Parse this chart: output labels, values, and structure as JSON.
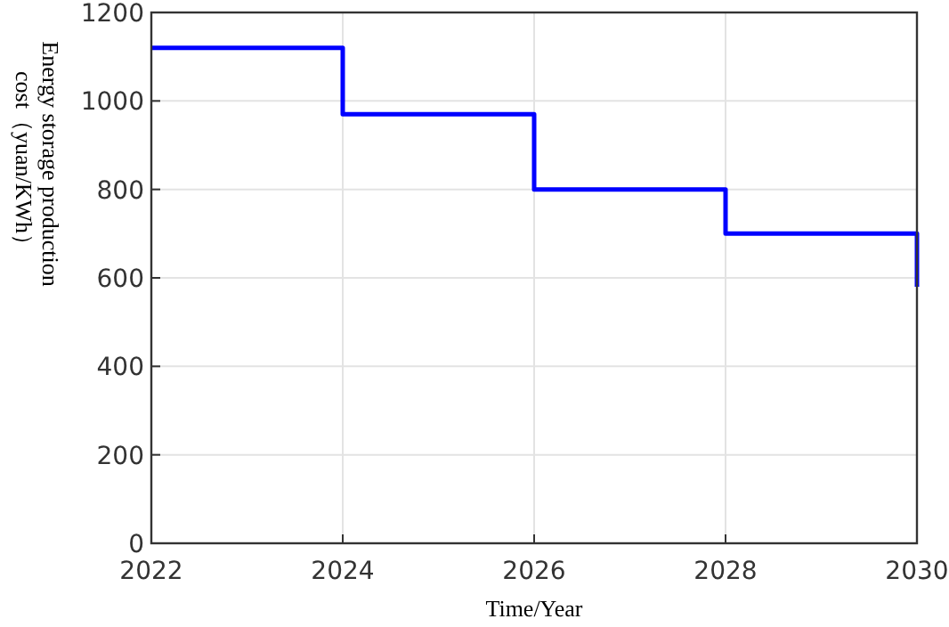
{
  "chart_data": {
    "type": "step",
    "xlabel": "Time/Year",
    "ylabel": "Energy storage production cost（yuan/KWh）",
    "x": [
      2022,
      2024,
      2026,
      2028,
      2030
    ],
    "series": [
      {
        "color": "#0000ff",
        "values": [
          1120,
          970,
          800,
          700,
          580
        ]
      }
    ],
    "xlim": [
      2022,
      2030
    ],
    "xticks": [
      2022,
      2024,
      2026,
      2028,
      2030
    ],
    "ylim": [
      0,
      1200
    ],
    "yticks": [
      0,
      200,
      400,
      600,
      800,
      1000,
      1200
    ],
    "grid": true,
    "marker": "none",
    "line_style": "solid"
  }
}
